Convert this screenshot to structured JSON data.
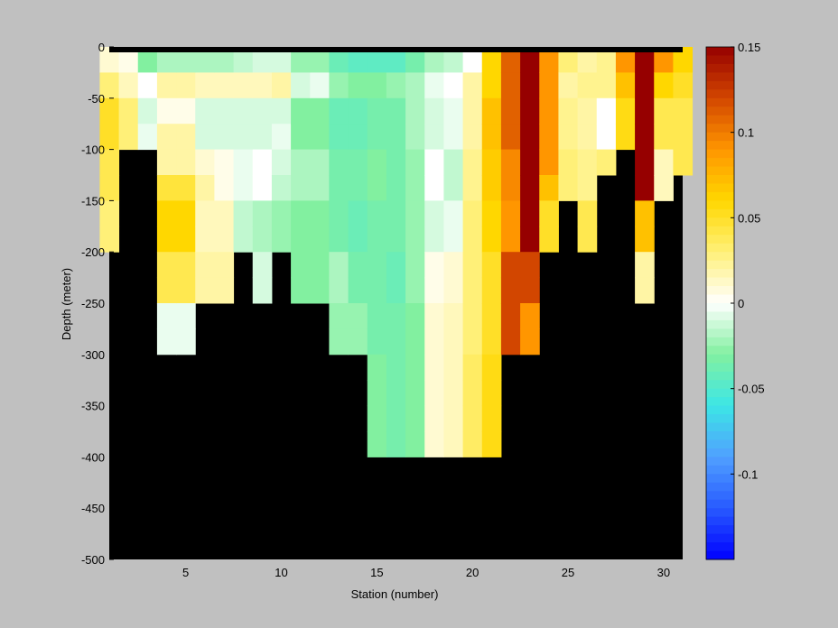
{
  "chart_data": {
    "type": "heatmap",
    "title": "",
    "xlabel": "Station (number)",
    "ylabel": "Depth (meter)",
    "xlim": [
      1,
      31
    ],
    "ylim": [
      -500,
      0
    ],
    "x_ticks": [
      5,
      10,
      15,
      20,
      25,
      30
    ],
    "y_ticks": [
      0,
      -50,
      -100,
      -150,
      -200,
      -250,
      -300,
      -350,
      -400,
      -450,
      -500
    ],
    "cell_depth_step": 25,
    "colorbar": {
      "range": [
        -0.15,
        0.15
      ],
      "ticks": [
        "0.15",
        "0.1",
        "0.05",
        "0",
        "-0.05",
        "-0.1"
      ],
      "tick_values": [
        0.15,
        0.1,
        0.05,
        0,
        -0.05,
        -0.1
      ],
      "colormap": "jet-white-centered"
    },
    "no_data_color": "#000000",
    "stations": [
      {
        "station": 1,
        "bottom": -200,
        "values": [
          0.01,
          0.03,
          0.05,
          0.05,
          0.04,
          0.04,
          0.03,
          0.03
        ]
      },
      {
        "station": 2,
        "bottom": -100,
        "values": [
          0.005,
          0.015,
          0.03,
          0.03
        ]
      },
      {
        "station": 3,
        "bottom": -100,
        "values": [
          -0.03,
          0.0,
          -0.01,
          -0.005
        ]
      },
      {
        "station": 4,
        "bottom": -300,
        "values": [
          -0.02,
          0.02,
          0.005,
          0.02,
          0.02,
          0.045,
          0.06,
          0.06,
          0.04,
          0.04,
          -0.005,
          -0.005
        ]
      },
      {
        "station": 5,
        "bottom": -300,
        "values": [
          -0.02,
          0.02,
          0.005,
          0.02,
          0.02,
          0.045,
          0.06,
          0.06,
          0.04,
          0.04,
          -0.005,
          -0.005
        ]
      },
      {
        "station": 6,
        "bottom": -250,
        "values": [
          -0.02,
          0.015,
          -0.01,
          -0.01,
          0.01,
          0.02,
          0.015,
          0.015,
          0.02,
          0.02
        ]
      },
      {
        "station": 7,
        "bottom": -250,
        "values": [
          -0.02,
          0.015,
          -0.01,
          -0.01,
          0.005,
          0.005,
          0.015,
          0.015,
          0.02,
          0.02
        ]
      },
      {
        "station": 8,
        "bottom": -200,
        "values": [
          -0.015,
          0.015,
          -0.01,
          -0.01,
          -0.005,
          -0.005,
          -0.015,
          -0.015
        ]
      },
      {
        "station": 9,
        "bottom": -250,
        "values": [
          -0.01,
          0.015,
          -0.01,
          -0.01,
          0.0,
          0.0,
          -0.02,
          -0.02,
          -0.01,
          -0.01
        ]
      },
      {
        "station": 10,
        "bottom": -200,
        "values": [
          -0.01,
          0.02,
          -0.01,
          -0.005,
          -0.01,
          -0.015,
          -0.025,
          -0.025
        ]
      },
      {
        "station": 11,
        "bottom": -250,
        "values": [
          -0.025,
          -0.01,
          -0.03,
          -0.03,
          -0.02,
          -0.02,
          -0.03,
          -0.03,
          -0.03,
          -0.03
        ]
      },
      {
        "station": 12,
        "bottom": -250,
        "values": [
          -0.025,
          -0.005,
          -0.03,
          -0.03,
          -0.02,
          -0.02,
          -0.03,
          -0.03,
          -0.03,
          -0.03
        ]
      },
      {
        "station": 13,
        "bottom": -300,
        "values": [
          -0.04,
          -0.025,
          -0.04,
          -0.04,
          -0.035,
          -0.035,
          -0.035,
          -0.035,
          -0.02,
          -0.02,
          -0.025,
          -0.025
        ]
      },
      {
        "station": 14,
        "bottom": -300,
        "values": [
          -0.045,
          -0.03,
          -0.04,
          -0.04,
          -0.035,
          -0.035,
          -0.04,
          -0.04,
          -0.035,
          -0.035,
          -0.025,
          -0.025
        ]
      },
      {
        "station": 15,
        "bottom": -400,
        "values": [
          -0.045,
          -0.03,
          -0.035,
          -0.035,
          -0.03,
          -0.03,
          -0.035,
          -0.035,
          -0.035,
          -0.035,
          -0.035,
          -0.035,
          -0.03,
          -0.03,
          -0.03,
          -0.03
        ]
      },
      {
        "station": 16,
        "bottom": -400,
        "values": [
          -0.045,
          -0.025,
          -0.035,
          -0.035,
          -0.035,
          -0.035,
          -0.035,
          -0.035,
          -0.04,
          -0.04,
          -0.035,
          -0.035,
          -0.035,
          -0.035,
          -0.035,
          -0.035
        ]
      },
      {
        "station": 17,
        "bottom": -400,
        "values": [
          -0.035,
          -0.02,
          -0.02,
          -0.02,
          -0.025,
          -0.025,
          -0.025,
          -0.025,
          -0.025,
          -0.025,
          -0.03,
          -0.03,
          -0.03,
          -0.03,
          -0.03,
          -0.03
        ]
      },
      {
        "station": 18,
        "bottom": -400,
        "values": [
          -0.02,
          -0.005,
          -0.01,
          -0.01,
          0.0,
          0.0,
          -0.01,
          -0.01,
          0.005,
          0.005,
          0.01,
          0.01,
          0.01,
          0.01,
          0.01,
          0.01
        ]
      },
      {
        "station": 19,
        "bottom": -400,
        "values": [
          -0.015,
          0.0,
          -0.005,
          -0.005,
          -0.015,
          -0.015,
          -0.005,
          -0.005,
          0.01,
          0.01,
          0.015,
          0.015,
          0.015,
          0.015,
          0.015,
          0.015
        ]
      },
      {
        "station": 20,
        "bottom": -400,
        "values": [
          0.0,
          0.02,
          0.02,
          0.02,
          0.025,
          0.025,
          0.03,
          0.03,
          0.03,
          0.03,
          0.03,
          0.03,
          0.035,
          0.035,
          0.035,
          0.035
        ]
      },
      {
        "station": 21,
        "bottom": -400,
        "values": [
          0.06,
          0.06,
          0.07,
          0.07,
          0.065,
          0.065,
          0.06,
          0.06,
          0.05,
          0.05,
          0.05,
          0.05,
          0.055,
          0.055,
          0.055,
          0.055
        ]
      },
      {
        "station": 22,
        "bottom": -300,
        "values": [
          0.11,
          0.11,
          0.11,
          0.11,
          0.095,
          0.095,
          0.09,
          0.09,
          0.12,
          0.12,
          0.12,
          0.12
        ]
      },
      {
        "station": 23,
        "bottom": -300,
        "values": [
          0.15,
          0.15,
          0.15,
          0.15,
          0.15,
          0.15,
          0.15,
          0.15,
          0.12,
          0.12,
          0.09,
          0.09
        ]
      },
      {
        "station": 24,
        "bottom": -200,
        "values": [
          0.09,
          0.09,
          0.09,
          0.09,
          0.09,
          0.07,
          0.05,
          0.05
        ]
      },
      {
        "station": 25,
        "bottom": -150,
        "values": [
          0.03,
          0.02,
          0.025,
          0.025,
          0.03,
          0.03
        ]
      },
      {
        "station": 26,
        "bottom": -200,
        "values": [
          0.02,
          0.025,
          0.02,
          0.02,
          0.025,
          0.025,
          0.04,
          0.04
        ]
      },
      {
        "station": 27,
        "bottom": -125,
        "values": [
          0.025,
          0.025,
          0.0,
          0.0,
          0.03
        ]
      },
      {
        "station": 28,
        "bottom": -100,
        "values": [
          0.09,
          0.07,
          0.055,
          0.055
        ]
      },
      {
        "station": 29,
        "bottom": -250,
        "values": [
          0.15,
          0.15,
          0.15,
          0.15,
          0.15,
          0.15,
          0.07,
          0.07,
          0.02,
          0.02
        ]
      },
      {
        "station": 30,
        "bottom": -150,
        "values": [
          0.09,
          0.06,
          0.04,
          0.04,
          0.015,
          0.015
        ]
      },
      {
        "station": 31,
        "bottom": -125,
        "values": [
          0.06,
          0.05,
          0.04,
          0.04,
          0.04
        ]
      }
    ]
  }
}
